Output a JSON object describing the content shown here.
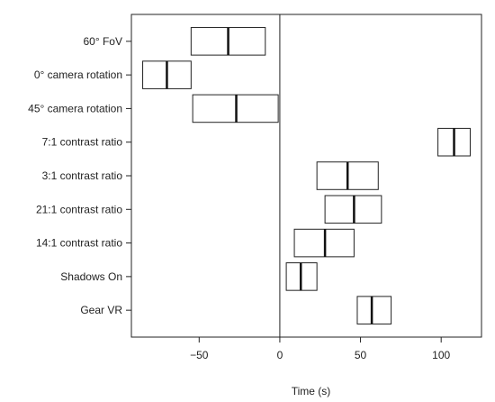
{
  "chart_data": {
    "type": "box",
    "xlabel": "Time (s)",
    "ylabel": "",
    "title": "",
    "xlim": [
      -92,
      125
    ],
    "xticks": [
      -50,
      0,
      50,
      100
    ],
    "reference_line_x": 0,
    "grid": false,
    "categories": [
      "60° FoV",
      "0° camera rotation",
      "45° camera rotation",
      "7:1 contrast ratio",
      "3:1 contrast ratio",
      "21:1 contrast ratio",
      "14:1 contrast ratio",
      "Shadows On",
      "Gear VR"
    ],
    "boxes": [
      {
        "low": -55,
        "median": -32,
        "high": -9
      },
      {
        "low": -85,
        "median": -70,
        "high": -55
      },
      {
        "low": -54,
        "median": -27,
        "high": -1
      },
      {
        "low": 98,
        "median": 108,
        "high": 118
      },
      {
        "low": 23,
        "median": 42,
        "high": 61
      },
      {
        "low": 28,
        "median": 46,
        "high": 63
      },
      {
        "low": 9,
        "median": 28,
        "high": 46
      },
      {
        "low": 4,
        "median": 13,
        "high": 23
      },
      {
        "low": 48,
        "median": 57,
        "high": 69
      }
    ]
  }
}
